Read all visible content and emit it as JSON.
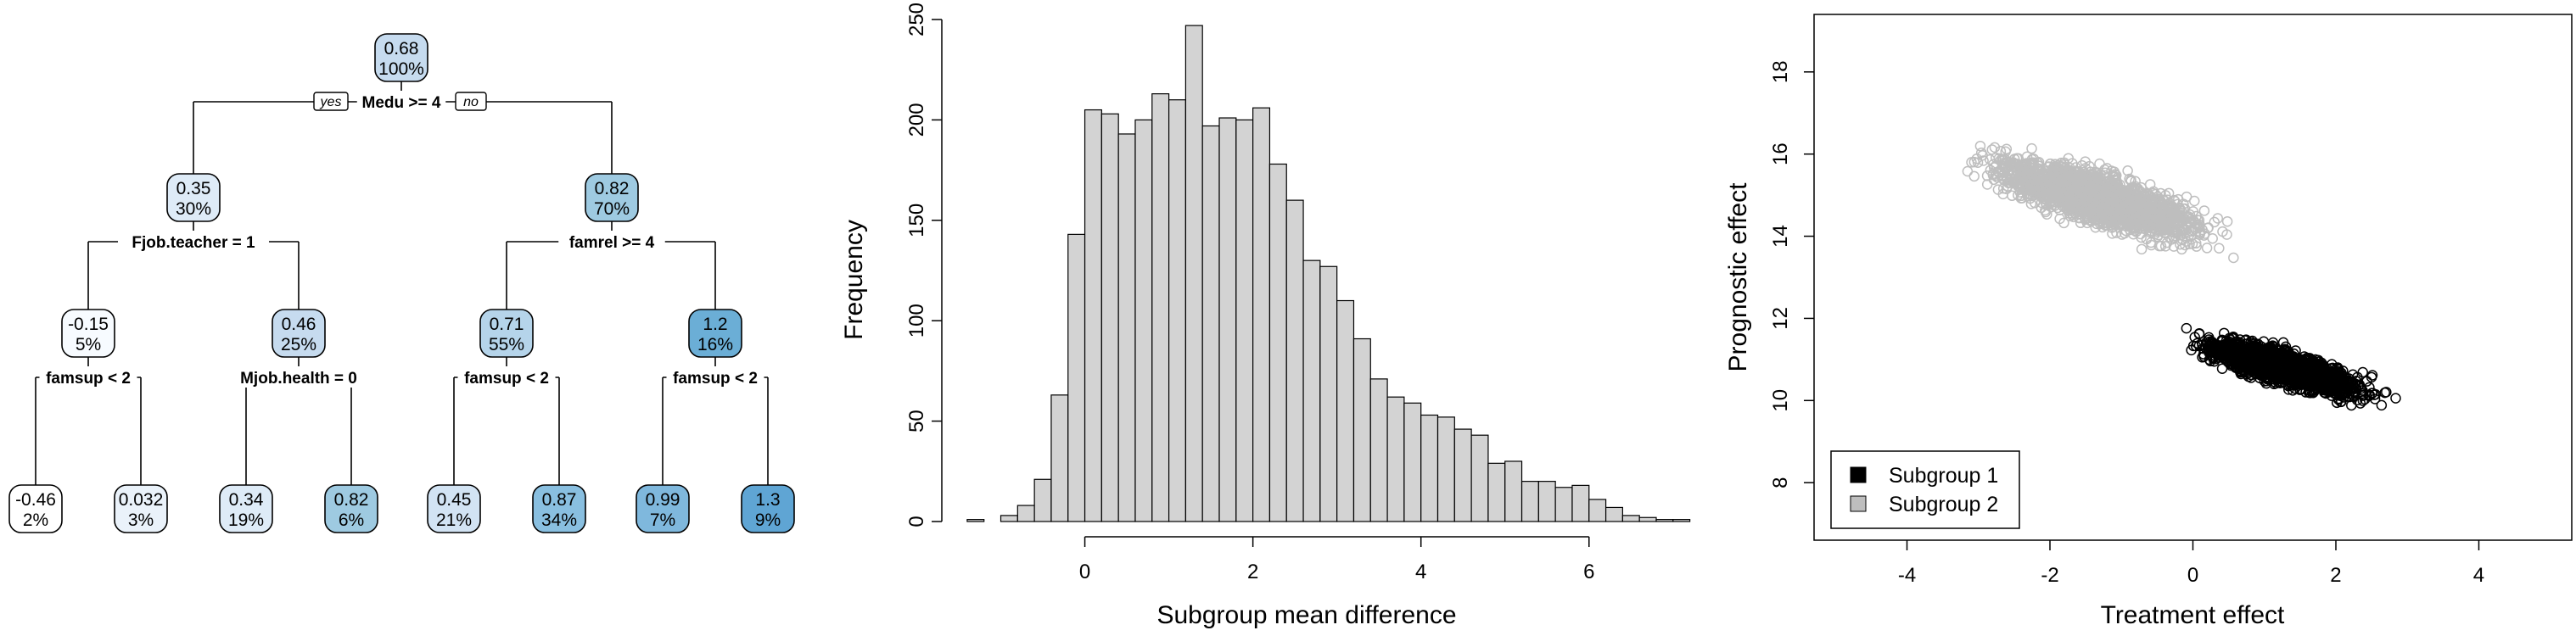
{
  "chart_data": [
    {
      "type": "tree",
      "yes_label": "yes",
      "no_label": "no",
      "nodes": [
        {
          "id": "n1",
          "value": "0.68",
          "pct": "100%",
          "color": "#c6dbef",
          "split": "Medu >= 4",
          "children": [
            "n2",
            "n3"
          ]
        },
        {
          "id": "n2",
          "value": "0.35",
          "pct": "30%",
          "color": "#deebf7",
          "split": "Fjob.teacher = 1",
          "children": [
            "n4",
            "n5"
          ]
        },
        {
          "id": "n3",
          "value": "0.82",
          "pct": "70%",
          "color": "#9ecae1",
          "split": "famrel >= 4",
          "children": [
            "n6",
            "n7"
          ]
        },
        {
          "id": "n4",
          "value": "-0.15",
          "pct": "5%",
          "color": "#f7fbff",
          "split": "famsup < 2",
          "children": [
            "n8",
            "n9"
          ]
        },
        {
          "id": "n5",
          "value": "0.46",
          "pct": "25%",
          "color": "#c6dbef",
          "split": "Mjob.health = 0",
          "children": [
            "n10",
            "n11"
          ]
        },
        {
          "id": "n6",
          "value": "0.71",
          "pct": "55%",
          "color": "#b5d4ea",
          "split": "famsup < 2",
          "children": [
            "n12",
            "n13"
          ]
        },
        {
          "id": "n7",
          "value": "1.2",
          "pct": "16%",
          "color": "#6baed6",
          "split": "famsup < 2",
          "children": [
            "n14",
            "n15"
          ]
        },
        {
          "id": "n8",
          "value": "-0.46",
          "pct": "2%",
          "color": "#ffffff",
          "split": "",
          "children": []
        },
        {
          "id": "n9",
          "value": "0.032",
          "pct": "3%",
          "color": "#eaf2fa",
          "split": "",
          "children": []
        },
        {
          "id": "n10",
          "value": "0.34",
          "pct": "19%",
          "color": "#deebf7",
          "split": "",
          "children": []
        },
        {
          "id": "n11",
          "value": "0.82",
          "pct": "6%",
          "color": "#9ecae1",
          "split": "",
          "children": []
        },
        {
          "id": "n12",
          "value": "0.45",
          "pct": "21%",
          "color": "#d2e3f3",
          "split": "",
          "children": []
        },
        {
          "id": "n13",
          "value": "0.87",
          "pct": "34%",
          "color": "#89bfe0",
          "split": "",
          "children": []
        },
        {
          "id": "n14",
          "value": "0.99",
          "pct": "7%",
          "color": "#7fb8dd",
          "split": "",
          "children": []
        },
        {
          "id": "n15",
          "value": "1.3",
          "pct": "9%",
          "color": "#5fa5d4",
          "split": "",
          "children": []
        }
      ]
    },
    {
      "type": "bar",
      "title": "",
      "xlabel": "Subgroup mean difference",
      "ylabel": "Frequency",
      "bin_width": 0.2,
      "bin_start": -1.4,
      "counts": [
        1,
        0,
        3,
        8,
        21,
        63,
        143,
        205,
        203,
        193,
        200,
        213,
        210,
        247,
        197,
        201,
        200,
        206,
        178,
        160,
        130,
        127,
        110,
        91,
        71,
        62,
        59,
        53,
        52,
        46,
        43,
        29,
        30,
        20,
        20,
        17,
        18,
        11,
        7,
        3,
        2,
        1,
        1
      ],
      "xlim": [
        -1.5,
        6.8
      ],
      "ylim": [
        0,
        250
      ],
      "x_ticks": [
        "0",
        "2",
        "4",
        "6"
      ],
      "y_ticks": [
        "0",
        "50",
        "100",
        "150",
        "200",
        "250"
      ],
      "bar_color": "#d3d3d3"
    },
    {
      "type": "scatter",
      "title": "",
      "xlabel": "Treatment effect",
      "ylabel": "Prognostic effect",
      "xlim": [
        -5.3,
        5.3
      ],
      "ylim": [
        6.6,
        19.4
      ],
      "x_ticks": [
        "-4",
        "-2",
        "0",
        "2",
        "4"
      ],
      "y_ticks": [
        "8",
        "10",
        "12",
        "14",
        "16",
        "18"
      ],
      "series": [
        {
          "name": "Subgroup 1",
          "color": "#000000",
          "x_range": [
            -0.1,
            3.7
          ],
          "y_range": [
            8.9,
            12.4
          ],
          "center": [
            1.3,
            10.8
          ],
          "slope": -0.55
        },
        {
          "name": "Subgroup 2",
          "color": "#bebebe",
          "x_range": [
            -4.3,
            1.5
          ],
          "y_range": [
            12.7,
            18.2
          ],
          "center": [
            -1.3,
            14.9
          ],
          "slope": -0.55
        }
      ],
      "legend_position": "bottom-left"
    }
  ]
}
